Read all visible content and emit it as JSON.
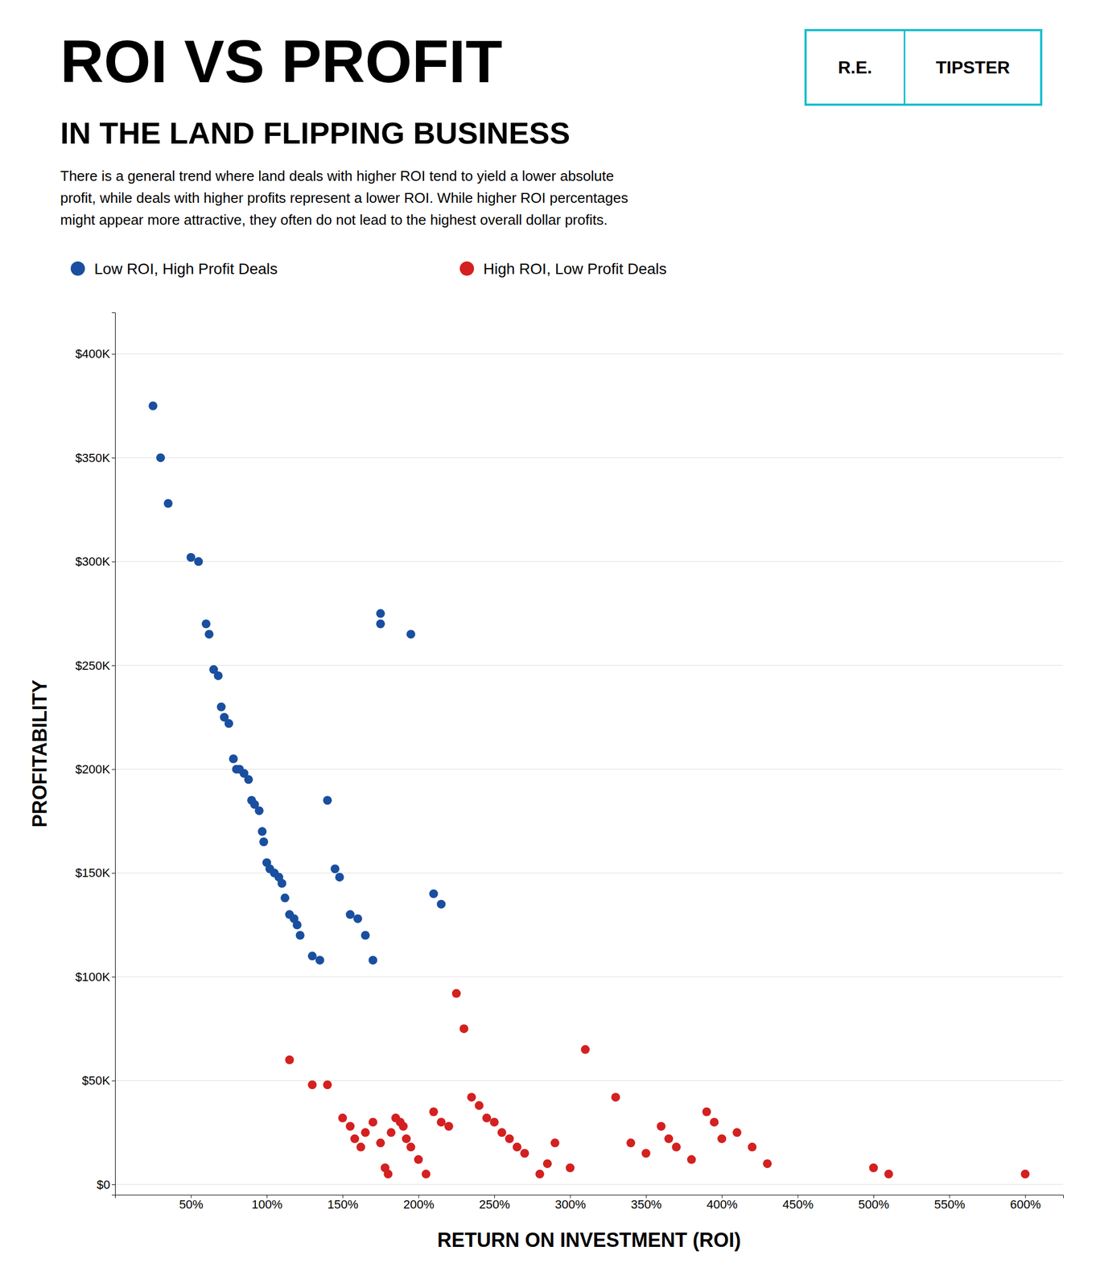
{
  "chart_data": {
    "type": "scatter",
    "title": "ROI VS PROFIT",
    "subtitle": "IN THE LAND FLIPPING BUSINESS",
    "annotations": [
      "There is a general trend where land deals with higher ROI tend to yield a lower absolute",
      "profit, while deals with higher profits represent a lower ROI. While higher ROI percentages",
      "might appear more attractive, they often do not lead to the highest overall dollar profits.",
      "R.E.",
      "TIPSTER"
    ],
    "xlabel": "RETURN ON INVESTMENT (ROI)",
    "ylabel": "PROFITABILITY",
    "series": [
      {
        "name": "Low ROI, High Profit Deals",
        "color": "#1a4fa0",
        "x": [
          25,
          30,
          35,
          50,
          55,
          60,
          62,
          65,
          68,
          70,
          72,
          75,
          78,
          80,
          82,
          85,
          88,
          90,
          92,
          95,
          97,
          98,
          100,
          102,
          105,
          108,
          110,
          112,
          115,
          118,
          120,
          122,
          130,
          135,
          140,
          145,
          148,
          155,
          160,
          165,
          170,
          175,
          175,
          195,
          210,
          215
        ],
        "values": [
          375000,
          350000,
          328000,
          302000,
          300000,
          270000,
          265000,
          248000,
          245000,
          230000,
          225000,
          222000,
          205000,
          200000,
          200000,
          198000,
          195000,
          185000,
          183000,
          180000,
          170000,
          165000,
          155000,
          152000,
          150000,
          148000,
          145000,
          138000,
          130000,
          128000,
          125000,
          120000,
          110000,
          108000,
          185000,
          152000,
          148000,
          130000,
          128000,
          120000,
          108000,
          270000,
          275000,
          265000,
          140000,
          135000
        ]
      },
      {
        "name": "High ROI, Low Profit Deals",
        "color": "#d42020",
        "x": [
          115,
          130,
          140,
          150,
          155,
          158,
          162,
          165,
          170,
          175,
          178,
          180,
          182,
          185,
          188,
          190,
          192,
          195,
          200,
          205,
          210,
          215,
          220,
          225,
          230,
          235,
          240,
          245,
          250,
          255,
          260,
          265,
          270,
          280,
          285,
          290,
          300,
          310,
          330,
          340,
          350,
          360,
          365,
          370,
          380,
          390,
          395,
          400,
          410,
          420,
          430,
          500,
          510,
          600
        ],
        "values": [
          60000,
          48000,
          48000,
          32000,
          28000,
          22000,
          18000,
          25000,
          30000,
          20000,
          8000,
          5000,
          25000,
          32000,
          30000,
          28000,
          22000,
          18000,
          12000,
          5000,
          35000,
          30000,
          28000,
          92000,
          75000,
          42000,
          38000,
          32000,
          30000,
          25000,
          22000,
          18000,
          15000,
          5000,
          10000,
          20000,
          8000,
          65000,
          42000,
          20000,
          15000,
          28000,
          22000,
          18000,
          12000,
          35000,
          30000,
          22000,
          25000,
          18000,
          10000,
          8000,
          5000,
          5000
        ]
      }
    ],
    "xlim": [
      0,
      625
    ],
    "xticks": [
      {
        "value": 50,
        "label": "50%"
      },
      {
        "value": 100,
        "label": "100%"
      },
      {
        "value": 150,
        "label": "150%"
      },
      {
        "value": 200,
        "label": "200%"
      },
      {
        "value": 250,
        "label": "250%"
      },
      {
        "value": 300,
        "label": "300%"
      },
      {
        "value": 350,
        "label": "350%"
      },
      {
        "value": 400,
        "label": "400%"
      },
      {
        "value": 450,
        "label": "450%"
      },
      {
        "value": 500,
        "label": "500%"
      },
      {
        "value": 550,
        "label": "550%"
      },
      {
        "value": 600,
        "label": "600%"
      }
    ],
    "ylim": [
      -5000,
      420000
    ],
    "yticks": [
      {
        "value": 0,
        "label": "$0"
      },
      {
        "value": 50000,
        "label": "$50K"
      },
      {
        "value": 100000,
        "label": "$100K"
      },
      {
        "value": 150000,
        "label": "$150K"
      },
      {
        "value": 200000,
        "label": "$200K"
      },
      {
        "value": 250000,
        "label": "$250K"
      },
      {
        "value": 300000,
        "label": "$300K"
      },
      {
        "value": 350000,
        "label": "$350K"
      },
      {
        "value": 400000,
        "label": "$400K"
      }
    ],
    "grid": true,
    "legend": "top"
  }
}
